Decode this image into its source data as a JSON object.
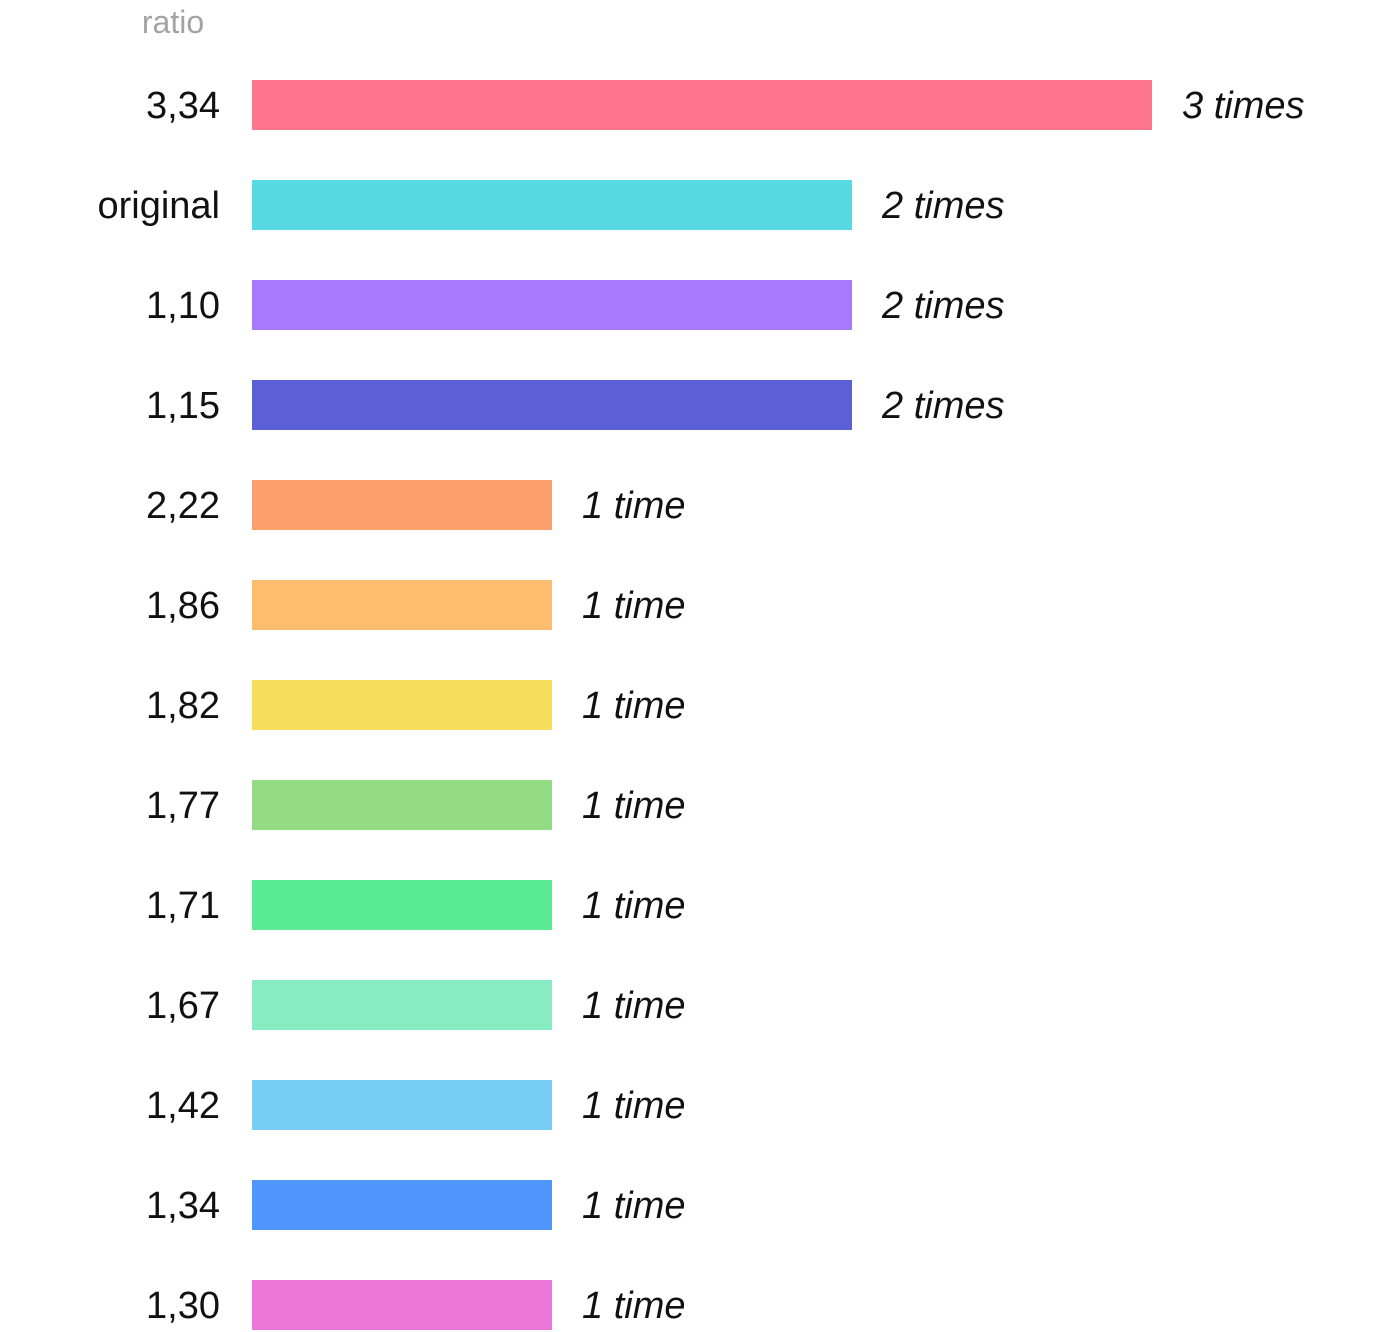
{
  "chart_data": {
    "type": "bar",
    "orientation": "horizontal",
    "column_header": "ratio",
    "categories": [
      "3,34",
      "original",
      "1,10",
      "1,15",
      "2,22",
      "1,86",
      "1,82",
      "1,77",
      "1,71",
      "1,67",
      "1,42",
      "1,34",
      "1,30"
    ],
    "values": [
      3,
      2,
      2,
      2,
      1,
      1,
      1,
      1,
      1,
      1,
      1,
      1,
      1
    ],
    "value_labels": [
      "3 times",
      "2 times",
      "2 times",
      "2 times",
      "1 time",
      "1 time",
      "1 time",
      "1 time",
      "1 time",
      "1 time",
      "1 time",
      "1 time",
      "1 time"
    ],
    "colors": [
      "#ff758c",
      "#57d9e3",
      "#a879fd",
      "#5b60d7",
      "#fca06b",
      "#febc6f",
      "#f6de5a",
      "#94dc84",
      "#5aea93",
      "#88ecc2",
      "#78cdf4",
      "#5196fc",
      "#eb78d9"
    ],
    "xlim": [
      0,
      3
    ],
    "grid": false,
    "legend": "none"
  }
}
